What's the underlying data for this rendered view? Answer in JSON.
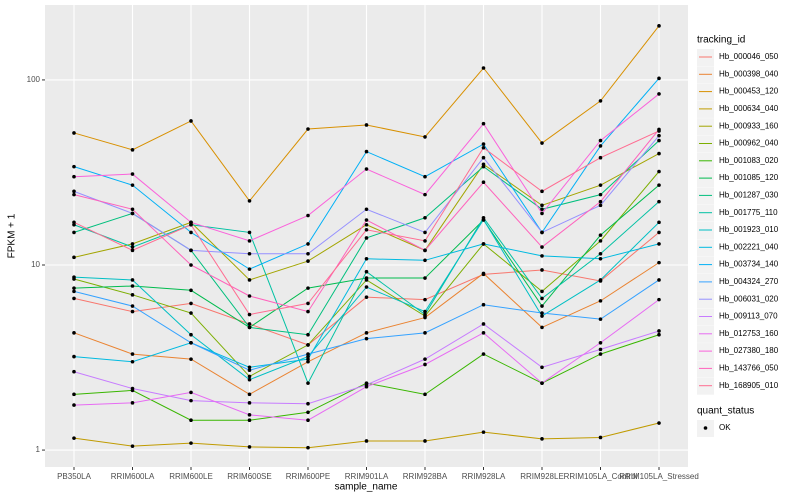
{
  "chart_data": {
    "type": "line",
    "x_label": "sample_name",
    "y_label": "FPKM + 1",
    "legend_title": "tracking_id",
    "point_legend_title": "quant_status",
    "point_legend_labels": [
      "OK"
    ],
    "point_color": "#000000",
    "log_y": true,
    "grid": true,
    "legend_position": "right",
    "ylim": [
      0.81,
      254
    ],
    "yticks": [
      1,
      10,
      100
    ],
    "categories": [
      "PB350LA",
      "RRIM600LA",
      "RRIM600LE",
      "RRIM600SE",
      "RRIM600PE",
      "RRIM901LA",
      "RRIM928BA",
      "RRIM928LA",
      "RRIM928LE",
      "RRIM105LA_Control",
      "RRIM105LA_Stressed"
    ],
    "series": [
      {
        "name": "Hb_000046_050",
        "color": "#F8766D",
        "values": [
          6.6,
          5.6,
          6.2,
          4.8,
          3.7,
          6.7,
          6.5,
          8.9,
          9.4,
          8.2,
          15
        ]
      },
      {
        "name": "Hb_000398_040",
        "color": "#EA8331",
        "values": [
          4.3,
          3.3,
          3.1,
          2.0,
          3.0,
          4.3,
          5.2,
          9.0,
          4.6,
          6.4,
          10.3
        ]
      },
      {
        "name": "Hb_000453_120",
        "color": "#D89000",
        "values": [
          51.7,
          41.9,
          60,
          22.2,
          54.3,
          57.1,
          49.2,
          116,
          45.6,
          77,
          196
        ]
      },
      {
        "name": "Hb_000634_040",
        "color": "#C09B00",
        "values": [
          1.16,
          1.05,
          1.09,
          1.04,
          1.03,
          1.12,
          1.12,
          1.25,
          1.15,
          1.17,
          1.4
        ]
      },
      {
        "name": "Hb_000933_160",
        "color": "#A3A500",
        "values": [
          11,
          13,
          17,
          8.3,
          10.5,
          16.5,
          12,
          35,
          21,
          27,
          40
        ]
      },
      {
        "name": "Hb_000962_040",
        "color": "#7CAE00",
        "values": [
          8.4,
          6.9,
          5.5,
          2.5,
          3.7,
          8.3,
          5.3,
          13,
          7.2,
          13.5,
          32
        ]
      },
      {
        "name": "Hb_001083_020",
        "color": "#39B600",
        "values": [
          2.0,
          2.1,
          1.45,
          1.45,
          1.6,
          2.3,
          2.0,
          3.3,
          2.3,
          3.3,
          4.2
        ]
      },
      {
        "name": "Hb_001085_120",
        "color": "#00BB4E",
        "values": [
          7.5,
          7.7,
          7.3,
          4.6,
          7.5,
          8.5,
          8.5,
          17.5,
          6.0,
          14.5,
          27
        ]
      },
      {
        "name": "Hb_001287_030",
        "color": "#00BF7D",
        "values": [
          15,
          19,
          12,
          4.6,
          4.2,
          14,
          18,
          34,
          20,
          24,
          47
        ]
      },
      {
        "name": "Hb_001775_110",
        "color": "#00C1A3",
        "values": [
          16.5,
          12.5,
          16.5,
          15,
          2.3,
          9.2,
          5.4,
          18,
          6.6,
          11.5,
          22
        ]
      },
      {
        "name": "Hb_001923_010",
        "color": "#00BFC4",
        "values": [
          8.6,
          8.3,
          4.2,
          2.4,
          3.2,
          7.6,
          5.6,
          17.6,
          5.3,
          8.3,
          17
        ]
      },
      {
        "name": "Hb_002221_040",
        "color": "#00BAE0",
        "values": [
          3.2,
          3.0,
          3.8,
          2.8,
          3.1,
          10.8,
          10.6,
          13,
          11.2,
          10.8,
          13
        ]
      },
      {
        "name": "Hb_003734_140",
        "color": "#00B0F6",
        "values": [
          34,
          27,
          15,
          9.5,
          13,
          41,
          30,
          45,
          15,
          44,
          102
        ]
      },
      {
        "name": "Hb_004324_270",
        "color": "#35A2FF",
        "values": [
          7.2,
          6.0,
          3.8,
          2.7,
          3.3,
          4.0,
          4.3,
          6.1,
          5.5,
          5.1,
          8.3
        ]
      },
      {
        "name": "Hb_006031_020",
        "color": "#9590FF",
        "values": [
          25,
          19,
          12,
          11.5,
          11.5,
          20,
          15,
          38,
          15,
          21,
          50
        ]
      },
      {
        "name": "Hb_009113_070",
        "color": "#C77CFF",
        "values": [
          2.65,
          2.15,
          1.85,
          1.8,
          1.78,
          2.25,
          3.1,
          4.8,
          2.8,
          3.5,
          4.4
        ]
      },
      {
        "name": "Hb_012753_160",
        "color": "#E76BF3",
        "values": [
          1.75,
          1.8,
          2.05,
          1.55,
          1.45,
          2.2,
          2.9,
          4.3,
          2.3,
          3.8,
          6.5
        ]
      },
      {
        "name": "Hb_027380_180",
        "color": "#FA62DB",
        "values": [
          30,
          31,
          17,
          13.5,
          18.5,
          33,
          24,
          58,
          19,
          47,
          84
        ]
      },
      {
        "name": "Hb_143766_050",
        "color": "#FF62BC",
        "values": [
          24,
          20,
          10,
          6.8,
          5.6,
          17.5,
          12,
          28,
          12.5,
          22,
          54
        ]
      },
      {
        "name": "Hb_168905_010",
        "color": "#FF6C91",
        "values": [
          17,
          12,
          16.5,
          5.4,
          6.2,
          15.5,
          13.5,
          43,
          25,
          38,
          53
        ]
      }
    ]
  }
}
